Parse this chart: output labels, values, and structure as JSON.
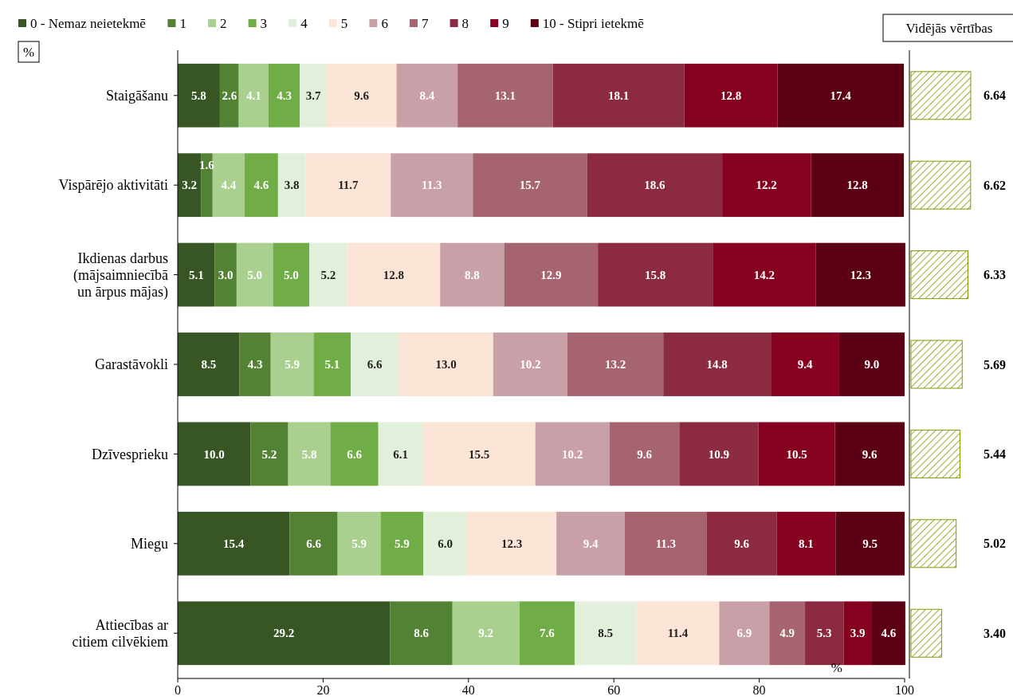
{
  "chart_data": [
    {
      "type": "bar",
      "orientation": "horizontal",
      "stacked": true,
      "legend": "top",
      "xlabel": "%",
      "ylabel": "%",
      "xlim": [
        0,
        100
      ],
      "xticks": [
        0,
        20,
        40,
        60,
        80,
        100
      ],
      "categories": [
        "Staigāšanu",
        "Vispārējo aktivitāti",
        "Ikdienas darbus\n(mājsaimniecībā\nun ārpus mājas)",
        "Garastāvokli",
        "Dzīvesprieku",
        "Miegu",
        "Attiecības ar\ncitiem cilvēkiem"
      ],
      "series": [
        {
          "name": "0 - Nemaz neietekmē",
          "color": "#375623",
          "values": [
            5.8,
            3.2,
            5.1,
            8.5,
            10.0,
            15.4,
            29.2
          ],
          "value_labels": [
            "5.8",
            "3.2",
            "5.1",
            "8.5",
            "10.0",
            "15.4",
            "29.2"
          ]
        },
        {
          "name": "1",
          "color": "#548235",
          "values": [
            2.6,
            1.6,
            3.0,
            4.3,
            5.2,
            6.6,
            8.6
          ],
          "value_labels": [
            "2.6",
            "1.6",
            "3.0",
            "4.3",
            "5.2",
            "6.6",
            "8.6"
          ]
        },
        {
          "name": "2",
          "color": "#a9d08e",
          "values": [
            4.1,
            4.4,
            5.0,
            5.9,
            5.8,
            5.9,
            9.2
          ],
          "value_labels": [
            "4.1",
            "4.4",
            "5.0",
            "5.9",
            "5.8",
            "5.9",
            "9.2"
          ]
        },
        {
          "name": "3",
          "color": "#70ad47",
          "values": [
            4.3,
            4.6,
            5.0,
            5.1,
            6.6,
            5.9,
            7.6
          ],
          "value_labels": [
            "4.3",
            "4.6",
            "5.0",
            "5.1",
            "6.6",
            "5.9",
            "7.6"
          ]
        },
        {
          "name": "4",
          "color": "#e2efda",
          "values": [
            3.7,
            3.8,
            5.2,
            6.6,
            6.1,
            6.0,
            8.5
          ],
          "value_labels": [
            "3.7",
            "3.8",
            "5.2",
            "6.6",
            "6.1",
            "6.0",
            "8.5"
          ]
        },
        {
          "name": "5",
          "color": "#fce4d6",
          "values": [
            9.6,
            11.7,
            12.8,
            13.0,
            15.5,
            12.3,
            11.4
          ],
          "value_labels": [
            "9.6",
            "11.7",
            "12.8",
            "13.0",
            "15.5",
            "12.3",
            "11.4"
          ]
        },
        {
          "name": "6",
          "color": "#c9a0a8",
          "values": [
            8.4,
            11.3,
            8.8,
            10.2,
            10.2,
            9.4,
            6.9
          ],
          "value_labels": [
            "8.4",
            "11.3",
            "8.8",
            "10.2",
            "10.2",
            "9.4",
            "6.9"
          ]
        },
        {
          "name": "7",
          "color": "#a5646f",
          "values": [
            13.1,
            15.7,
            12.9,
            13.2,
            9.6,
            11.3,
            4.9
          ],
          "value_labels": [
            "13.1",
            "15.7",
            "12.9",
            "13.2",
            "9.6",
            "11.3",
            "4.9"
          ]
        },
        {
          "name": "8",
          "color": "#8b2a40",
          "values": [
            18.1,
            18.6,
            15.8,
            14.8,
            10.9,
            9.6,
            5.3
          ],
          "value_labels": [
            "18.1",
            "18.6",
            "15.8",
            "14.8",
            "10.9",
            "9.6",
            "5.3"
          ]
        },
        {
          "name": "9",
          "color": "#86001f",
          "values": [
            12.8,
            12.2,
            14.2,
            9.4,
            10.5,
            8.1,
            3.9
          ],
          "value_labels": [
            "12.8",
            "12.2",
            "14.2",
            "9.4",
            "10.5",
            "8.1",
            "3.9"
          ]
        },
        {
          "name": "10 - Stipri ietekmē",
          "color": "#5c0015",
          "values": [
            17.4,
            12.8,
            12.3,
            9.0,
            9.6,
            9.5,
            4.6
          ],
          "value_labels": [
            "17.4",
            "12.8",
            "12.3",
            "9.0",
            "9.6",
            "9.5",
            "4.6"
          ]
        }
      ]
    },
    {
      "type": "bar",
      "orientation": "horizontal",
      "title": "Vidējās vērtības",
      "categories": [
        null,
        null,
        null,
        null,
        null,
        null,
        null
      ],
      "color": "#7f9a00",
      "values": [
        6.64,
        6.62,
        6.33,
        5.69,
        5.44,
        5.02,
        3.4
      ],
      "value_labels": [
        "6.64",
        "6.62",
        "6.33",
        "5.69",
        "5.44",
        "5.02",
        "3.40"
      ]
    }
  ]
}
